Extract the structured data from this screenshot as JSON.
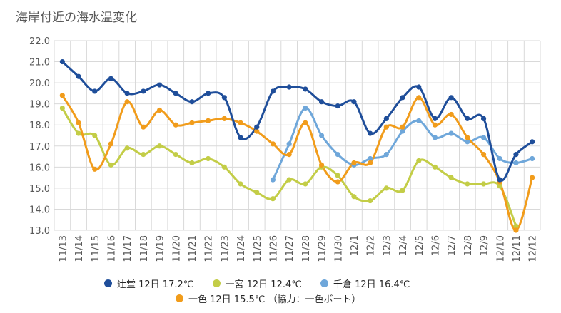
{
  "chart_data": {
    "type": "line",
    "title": "海岸付近の海水温変化",
    "xlabel": "",
    "ylabel": "",
    "ylim": [
      13.0,
      22.0
    ],
    "yticks": [
      "13.0",
      "14.0",
      "15.0",
      "16.0",
      "17.0",
      "18.0",
      "19.0",
      "20.0",
      "21.0",
      "22.0"
    ],
    "grid": true,
    "legend_position": "bottom",
    "categories": [
      "11/13",
      "11/14",
      "11/15",
      "11/16",
      "11/17",
      "11/18",
      "11/19",
      "11/20",
      "11/21",
      "11/22",
      "11/23",
      "11/24",
      "11/25",
      "11/26",
      "11/27",
      "11/28",
      "11/29",
      "11/30",
      "12/1",
      "12/2",
      "12/3",
      "12/4",
      "12/5",
      "12/6",
      "12/7",
      "12/8",
      "12/9",
      "12/10",
      "12/11",
      "12/12"
    ],
    "series": [
      {
        "name": "辻堂 12日 17.2℃",
        "color": "#1f4e9a",
        "values": [
          21.0,
          20.3,
          19.6,
          20.2,
          19.5,
          19.6,
          19.9,
          19.5,
          19.1,
          19.5,
          19.3,
          17.4,
          17.9,
          19.6,
          19.8,
          19.7,
          19.1,
          18.9,
          19.1,
          17.6,
          18.3,
          19.3,
          19.8,
          18.3,
          19.3,
          18.3,
          18.3,
          15.4,
          16.6,
          17.2
        ]
      },
      {
        "name": "一宮 12日 12.4℃",
        "color": "#c3cd47",
        "values": [
          18.8,
          17.6,
          17.5,
          16.1,
          16.9,
          16.6,
          17.0,
          16.6,
          16.2,
          16.4,
          16.0,
          15.2,
          14.8,
          14.5,
          15.4,
          15.2,
          16.0,
          15.6,
          14.6,
          14.4,
          15.0,
          14.9,
          16.3,
          16.0,
          15.5,
          15.2,
          15.2,
          15.1,
          13.2,
          null
        ]
      },
      {
        "name": "千倉 12日 16.4℃",
        "color": "#6fa7da",
        "values": [
          null,
          null,
          null,
          null,
          null,
          null,
          null,
          null,
          null,
          null,
          null,
          null,
          null,
          15.4,
          17.1,
          18.8,
          17.5,
          16.6,
          16.1,
          16.4,
          16.6,
          17.7,
          18.2,
          17.4,
          17.6,
          17.2,
          17.4,
          16.4,
          16.2,
          16.4
        ]
      },
      {
        "name": "一色 12日 15.5℃ （協力：一色ボート）",
        "color": "#f19c1b",
        "values": [
          19.4,
          18.1,
          15.9,
          17.1,
          19.1,
          17.9,
          18.7,
          18.0,
          18.1,
          18.2,
          18.3,
          18.1,
          17.7,
          17.1,
          16.6,
          18.1,
          16.1,
          15.3,
          16.2,
          16.2,
          17.9,
          17.9,
          19.3,
          18.0,
          18.5,
          17.4,
          16.6,
          15.3,
          13.0,
          15.5
        ]
      }
    ]
  }
}
